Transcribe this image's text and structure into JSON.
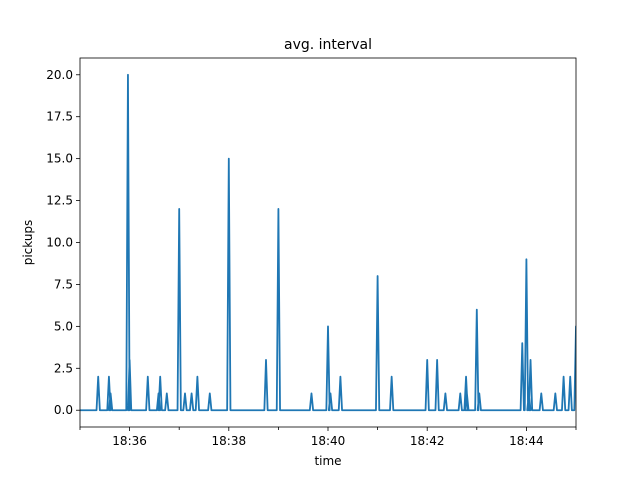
{
  "chart_data": {
    "type": "line",
    "title": "avg. interval",
    "xlabel": "time",
    "ylabel": "pickups",
    "x_unit": "minutes",
    "xlim": [
      "18:35:00",
      "18:45:00"
    ],
    "ylim": [
      -1.0,
      21.0
    ],
    "yticks": [
      0.0,
      2.5,
      5.0,
      7.5,
      10.0,
      12.5,
      15.0,
      17.5,
      20.0
    ],
    "ytick_labels": [
      "0.0",
      "2.5",
      "5.0",
      "7.5",
      "10.0",
      "12.5",
      "15.0",
      "17.5",
      "20.0"
    ],
    "xticks": [
      "18:36",
      "18:38",
      "18:40",
      "18:42",
      "18:44"
    ],
    "x_minor_ticks": [
      "18:35",
      "18:37",
      "18:39",
      "18:41",
      "18:43",
      "18:45"
    ],
    "grid": false,
    "line_color": "#1f77b4",
    "series": [
      {
        "peaks": [
          {
            "t": "18:35:22",
            "v": 2
          },
          {
            "t": "18:35:35",
            "v": 2
          },
          {
            "t": "18:35:37",
            "v": 1
          },
          {
            "t": "18:35:58",
            "v": 20
          },
          {
            "t": "18:36:00",
            "v": 3
          },
          {
            "t": "18:36:22",
            "v": 2
          },
          {
            "t": "18:36:35",
            "v": 1
          },
          {
            "t": "18:36:37",
            "v": 2
          },
          {
            "t": "18:36:45",
            "v": 1
          },
          {
            "t": "18:37:00",
            "v": 12
          },
          {
            "t": "18:37:07",
            "v": 1
          },
          {
            "t": "18:37:15",
            "v": 1
          },
          {
            "t": "18:37:22",
            "v": 2
          },
          {
            "t": "18:37:37",
            "v": 1
          },
          {
            "t": "18:38:00",
            "v": 15
          },
          {
            "t": "18:38:45",
            "v": 3
          },
          {
            "t": "18:39:00",
            "v": 12
          },
          {
            "t": "18:39:40",
            "v": 1
          },
          {
            "t": "18:40:00",
            "v": 5
          },
          {
            "t": "18:40:03",
            "v": 1
          },
          {
            "t": "18:40:15",
            "v": 2
          },
          {
            "t": "18:41:00",
            "v": 8
          },
          {
            "t": "18:41:17",
            "v": 2
          },
          {
            "t": "18:42:00",
            "v": 3
          },
          {
            "t": "18:42:12",
            "v": 3
          },
          {
            "t": "18:42:22",
            "v": 1
          },
          {
            "t": "18:42:40",
            "v": 1
          },
          {
            "t": "18:42:47",
            "v": 2
          },
          {
            "t": "18:42:48",
            "v": 1
          },
          {
            "t": "18:43:00",
            "v": 6
          },
          {
            "t": "18:43:03",
            "v": 1
          },
          {
            "t": "18:43:55",
            "v": 4
          },
          {
            "t": "18:44:00",
            "v": 9
          },
          {
            "t": "18:44:03",
            "v": 1
          },
          {
            "t": "18:44:05",
            "v": 3
          },
          {
            "t": "18:44:18",
            "v": 1
          },
          {
            "t": "18:44:35",
            "v": 1
          },
          {
            "t": "18:44:45",
            "v": 2
          },
          {
            "t": "18:44:53",
            "v": 2
          },
          {
            "t": "18:45:00",
            "v": 5
          }
        ],
        "baseline": 0
      }
    ]
  }
}
